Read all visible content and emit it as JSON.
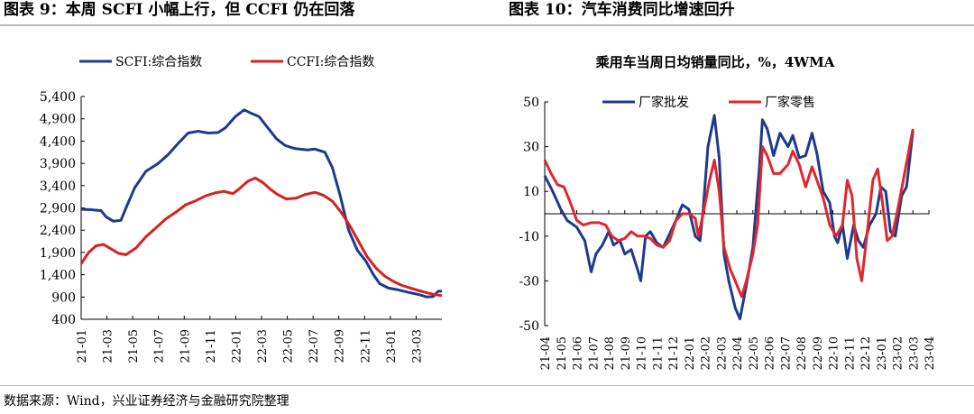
{
  "header": {
    "left_title": "图表 9：本周 SCFI 小幅上行，但 CCFI 仍在回落",
    "right_title": "图表 10：汽车消费同比增速回升"
  },
  "footer": {
    "source": "数据来源：Wind，兴业证券经济与金融研究院整理"
  },
  "chart_data": [
    {
      "type": "line",
      "title": "",
      "xlabel": "",
      "ylabel": "",
      "ylim": [
        400,
        5400
      ],
      "yticks": [
        400,
        900,
        1400,
        1900,
        2400,
        2900,
        3400,
        3900,
        4400,
        4900,
        5400
      ],
      "ytick_labels": [
        "400",
        "900",
        "1,400",
        "1,900",
        "2,400",
        "2,900",
        "3,400",
        "3,900",
        "4,400",
        "4,900",
        "5,400"
      ],
      "xlim": [
        0,
        29
      ],
      "xticks": [
        "21-01",
        "21-03",
        "21-05",
        "21-07",
        "21-09",
        "21-11",
        "22-01",
        "22-03",
        "22-05",
        "22-07",
        "22-09",
        "22-11",
        "23-01",
        "23-03"
      ],
      "legend_position": "top-center",
      "grid": false,
      "series": [
        {
          "name": "SCFI:综合指数",
          "color": "#1f3a8c",
          "points": [
            [
              0,
              2870
            ],
            [
              0.8,
              2860
            ],
            [
              1.6,
              2840
            ],
            [
              2,
              2700
            ],
            [
              2.6,
              2600
            ],
            [
              3.2,
              2620
            ],
            [
              3.6,
              2900
            ],
            [
              4.3,
              3350
            ],
            [
              5.2,
              3720
            ],
            [
              6.2,
              3900
            ],
            [
              7,
              4100
            ],
            [
              7.8,
              4350
            ],
            [
              8.6,
              4580
            ],
            [
              9.4,
              4620
            ],
            [
              10.2,
              4580
            ],
            [
              11,
              4590
            ],
            [
              11.6,
              4700
            ],
            [
              12.4,
              4950
            ],
            [
              13.1,
              5100
            ],
            [
              13.7,
              5020
            ],
            [
              14.3,
              4950
            ],
            [
              15,
              4700
            ],
            [
              15.7,
              4450
            ],
            [
              16.4,
              4300
            ],
            [
              17.2,
              4230
            ],
            [
              18.2,
              4200
            ],
            [
              18.8,
              4220
            ],
            [
              19.6,
              4150
            ],
            [
              20.2,
              3800
            ],
            [
              20.8,
              3200
            ],
            [
              21.5,
              2400
            ],
            [
              22.2,
              1950
            ],
            [
              22.9,
              1700
            ],
            [
              23.5,
              1400
            ],
            [
              24,
              1200
            ],
            [
              24.7,
              1100
            ],
            [
              25.5,
              1060
            ],
            [
              26.4,
              1000
            ],
            [
              27.2,
              950
            ],
            [
              27.8,
              900
            ],
            [
              28.3,
              910
            ],
            [
              28.7,
              1030
            ],
            [
              29,
              1030
            ]
          ]
        },
        {
          "name": "CCFI:综合指数",
          "color": "#d9201e",
          "points": [
            [
              0,
              1650
            ],
            [
              0.6,
              1900
            ],
            [
              1.2,
              2050
            ],
            [
              1.8,
              2080
            ],
            [
              2.4,
              1980
            ],
            [
              3,
              1880
            ],
            [
              3.6,
              1850
            ],
            [
              4.4,
              2000
            ],
            [
              5.2,
              2250
            ],
            [
              6,
              2450
            ],
            [
              6.8,
              2650
            ],
            [
              7.6,
              2800
            ],
            [
              8.4,
              2970
            ],
            [
              9.2,
              3060
            ],
            [
              10,
              3170
            ],
            [
              10.8,
              3240
            ],
            [
              11.5,
              3270
            ],
            [
              12.2,
              3220
            ],
            [
              12.8,
              3350
            ],
            [
              13.4,
              3500
            ],
            [
              14,
              3570
            ],
            [
              14.6,
              3470
            ],
            [
              15.2,
              3320
            ],
            [
              15.8,
              3200
            ],
            [
              16.5,
              3100
            ],
            [
              17.3,
              3120
            ],
            [
              18,
              3200
            ],
            [
              18.8,
              3250
            ],
            [
              19.5,
              3180
            ],
            [
              20.2,
              3050
            ],
            [
              20.9,
              2800
            ],
            [
              21.6,
              2500
            ],
            [
              22.3,
              2150
            ],
            [
              23,
              1800
            ],
            [
              23.7,
              1550
            ],
            [
              24.4,
              1370
            ],
            [
              25.1,
              1250
            ],
            [
              25.8,
              1160
            ],
            [
              26.5,
              1100
            ],
            [
              27.2,
              1040
            ],
            [
              27.9,
              990
            ],
            [
              28.5,
              950
            ],
            [
              29,
              930
            ]
          ]
        }
      ]
    },
    {
      "type": "line",
      "title": "乘用车当周日均销量同比，%，4WMA",
      "xlabel": "",
      "ylabel": "",
      "ylim": [
        -50,
        50
      ],
      "yticks": [
        -50,
        -30,
        -10,
        10,
        30,
        50
      ],
      "ytick_labels": [
        "-50",
        "-30",
        "-10",
        "10",
        "30",
        "50"
      ],
      "xlim": [
        0,
        24
      ],
      "xticks": [
        "21-04",
        "21-05",
        "21-06",
        "21-07",
        "21-08",
        "21-09",
        "21-10",
        "21-11",
        "21-12",
        "22-01",
        "22-02",
        "22-03",
        "22-04",
        "22-05",
        "22-06",
        "22-07",
        "22-08",
        "22-09",
        "22-10",
        "22-11",
        "22-12",
        "23-01",
        "23-02",
        "23-03",
        "23-04"
      ],
      "legend_position": "top-center",
      "grid": false,
      "series": [
        {
          "name": "厂家批发",
          "color": "#1f3a8c",
          "points": [
            [
              0,
              17
            ],
            [
              0.5,
              10
            ],
            [
              1,
              2
            ],
            [
              1.4,
              -3
            ],
            [
              2,
              -6
            ],
            [
              2.5,
              -12
            ],
            [
              2.9,
              -26
            ],
            [
              3.2,
              -18
            ],
            [
              3.6,
              -14
            ],
            [
              4,
              -8
            ],
            [
              4.3,
              -14
            ],
            [
              4.7,
              -12
            ],
            [
              5,
              -18
            ],
            [
              5.4,
              -16
            ],
            [
              5.8,
              -25
            ],
            [
              6,
              -30
            ],
            [
              6.3,
              -10
            ],
            [
              6.6,
              -8
            ],
            [
              7,
              -13
            ],
            [
              7.4,
              -15
            ],
            [
              7.8,
              -9
            ],
            [
              8.2,
              -3
            ],
            [
              8.6,
              4
            ],
            [
              9,
              2
            ],
            [
              9.4,
              -10
            ],
            [
              9.7,
              -12
            ],
            [
              9.9,
              2
            ],
            [
              10.2,
              30
            ],
            [
              10.6,
              44
            ],
            [
              10.9,
              25
            ],
            [
              11.2,
              -18
            ],
            [
              11.5,
              -30
            ],
            [
              11.9,
              -42
            ],
            [
              12.2,
              -47
            ],
            [
              12.6,
              -32
            ],
            [
              13,
              -15
            ],
            [
              13.4,
              20
            ],
            [
              13.6,
              42
            ],
            [
              13.9,
              38
            ],
            [
              14.3,
              26
            ],
            [
              14.7,
              36
            ],
            [
              15.2,
              30
            ],
            [
              15.5,
              35
            ],
            [
              15.9,
              25
            ],
            [
              16.3,
              26
            ],
            [
              16.7,
              36
            ],
            [
              17,
              27
            ],
            [
              17.4,
              10
            ],
            [
              17.8,
              5
            ],
            [
              18.1,
              -10
            ],
            [
              18.3,
              -13
            ],
            [
              18.6,
              -5
            ],
            [
              18.9,
              -20
            ],
            [
              19.3,
              -5
            ],
            [
              19.6,
              -12
            ],
            [
              19.9,
              -15
            ],
            [
              20.3,
              -5
            ],
            [
              20.7,
              0
            ],
            [
              21,
              12
            ],
            [
              21.3,
              10
            ],
            [
              21.6,
              -8
            ],
            [
              21.9,
              -10
            ],
            [
              22.3,
              8
            ],
            [
              22.6,
              12
            ],
            [
              23,
              37
            ]
          ]
        },
        {
          "name": "厂家零售",
          "color": "#e3262b",
          "points": [
            [
              0,
              24
            ],
            [
              0.4,
              18
            ],
            [
              0.8,
              13
            ],
            [
              1.2,
              12
            ],
            [
              1.6,
              5
            ],
            [
              2,
              -3
            ],
            [
              2.4,
              -5
            ],
            [
              2.9,
              -4
            ],
            [
              3.4,
              -4
            ],
            [
              3.8,
              -5
            ],
            [
              4.2,
              -10
            ],
            [
              4.6,
              -12
            ],
            [
              5,
              -11
            ],
            [
              5.4,
              -8
            ],
            [
              5.8,
              -10
            ],
            [
              6.2,
              -10
            ],
            [
              6.6,
              -11
            ],
            [
              7,
              -14
            ],
            [
              7.4,
              -15
            ],
            [
              7.8,
              -12
            ],
            [
              8.2,
              -3
            ],
            [
              8.6,
              0
            ],
            [
              9,
              0
            ],
            [
              9.4,
              -2
            ],
            [
              9.6,
              -10
            ],
            [
              9.9,
              0
            ],
            [
              10.3,
              15
            ],
            [
              10.6,
              24
            ],
            [
              10.9,
              10
            ],
            [
              11.2,
              -15
            ],
            [
              11.6,
              -25
            ],
            [
              11.9,
              -30
            ],
            [
              12.3,
              -37
            ],
            [
              12.6,
              -30
            ],
            [
              13,
              -18
            ],
            [
              13.3,
              -5
            ],
            [
              13.6,
              30
            ],
            [
              13.9,
              26
            ],
            [
              14.3,
              18
            ],
            [
              14.7,
              18
            ],
            [
              15.2,
              22
            ],
            [
              15.5,
              28
            ],
            [
              15.9,
              22
            ],
            [
              16.3,
              12
            ],
            [
              16.7,
              21
            ],
            [
              17,
              15
            ],
            [
              17.4,
              7
            ],
            [
              17.8,
              -5
            ],
            [
              18.2,
              -10
            ],
            [
              18.6,
              -5
            ],
            [
              18.9,
              15
            ],
            [
              19.2,
              8
            ],
            [
              19.5,
              -20
            ],
            [
              19.8,
              -30
            ],
            [
              20.2,
              -5
            ],
            [
              20.5,
              15
            ],
            [
              20.8,
              20
            ],
            [
              21.1,
              5
            ],
            [
              21.4,
              -12
            ],
            [
              21.7,
              -10
            ],
            [
              22,
              0
            ],
            [
              22.4,
              15
            ],
            [
              23,
              38
            ]
          ]
        }
      ]
    }
  ]
}
